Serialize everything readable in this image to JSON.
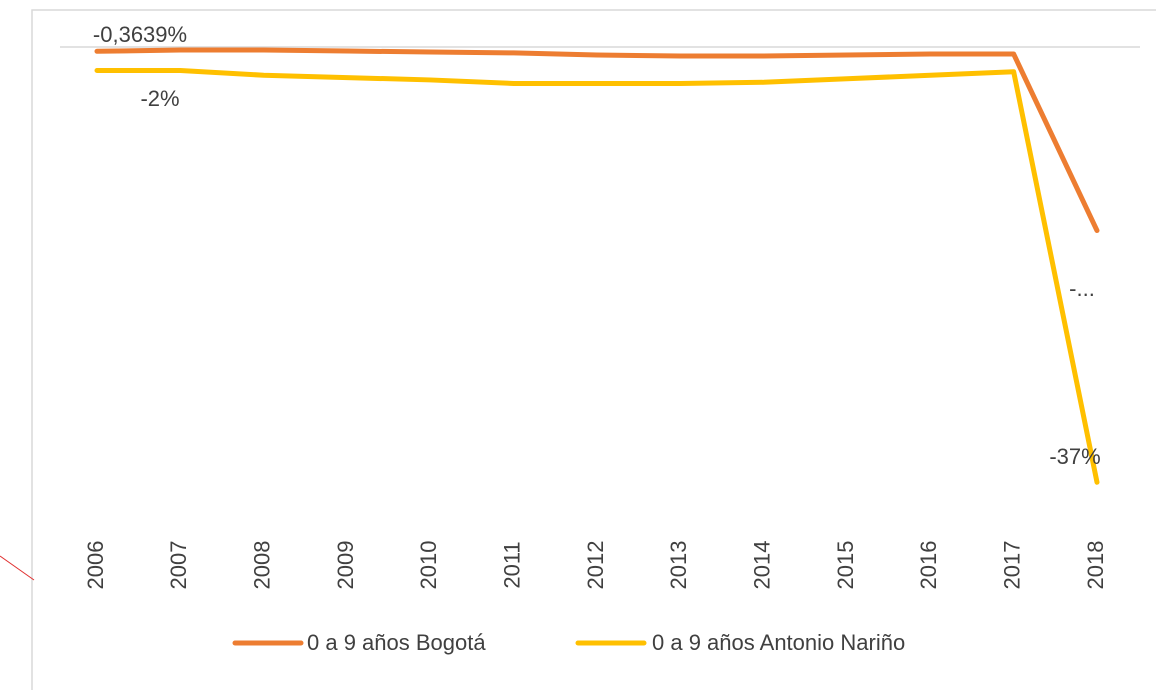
{
  "chart_data": {
    "type": "line",
    "categories": [
      "2006",
      "2007",
      "2008",
      "2009",
      "2010",
      "2011",
      "2012",
      "2013",
      "2014",
      "2015",
      "2016",
      "2017",
      "2018"
    ],
    "series": [
      {
        "name": "0 a 9 años Bogotá",
        "color": "#ED7D31",
        "values": [
          -0.3639,
          -0.26,
          -0.26,
          -0.34,
          -0.43,
          -0.5,
          -0.68,
          -0.77,
          -0.77,
          -0.68,
          -0.6,
          -0.6,
          -15.6
        ],
        "value_labels": [
          "-0,3639%",
          null,
          null,
          null,
          null,
          null,
          null,
          null,
          null,
          null,
          null,
          null,
          "-..."
        ]
      },
      {
        "name": "0 a 9 años Antonio Nariño",
        "color": "#FFC000",
        "values": [
          -2,
          -2,
          -2.4,
          -2.6,
          -2.8,
          -3.1,
          -3.1,
          -3.1,
          -3.0,
          -2.7,
          -2.4,
          -2.1,
          -37
        ],
        "value_labels": [
          "-2%",
          null,
          null,
          null,
          null,
          null,
          null,
          null,
          null,
          null,
          null,
          null,
          "-37%"
        ]
      }
    ],
    "ylim": [
      -38,
      0
    ]
  }
}
